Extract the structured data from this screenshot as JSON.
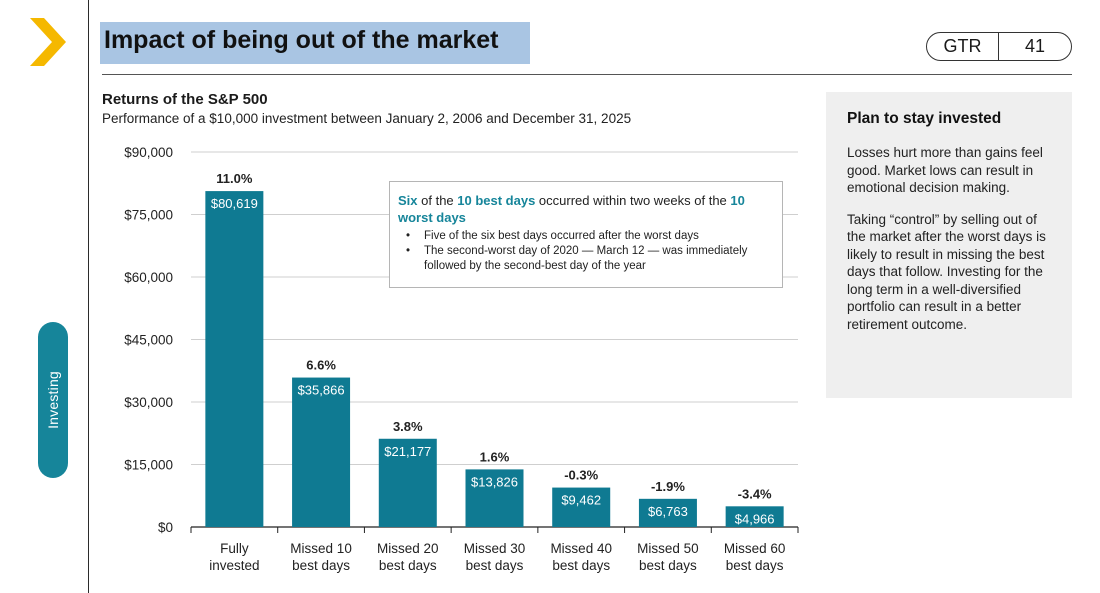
{
  "header": {
    "title": "Impact of being out of the market",
    "badge_left": "GTR",
    "badge_right": "41"
  },
  "side_tab": {
    "label": "Investing"
  },
  "chart_data": {
    "type": "bar",
    "title": "Returns of the S&P 500",
    "subtitle": "Performance of a $10,000 investment between January 2, 2006 and December 31, 2025",
    "categories": [
      [
        "Fully",
        "invested"
      ],
      [
        "Missed 10",
        "best days"
      ],
      [
        "Missed 20",
        "best days"
      ],
      [
        "Missed 30",
        "best days"
      ],
      [
        "Missed 40",
        "best days"
      ],
      [
        "Missed 50",
        "best days"
      ],
      [
        "Missed 60",
        "best days"
      ]
    ],
    "values": [
      80619,
      35866,
      21177,
      13826,
      9462,
      6763,
      4966
    ],
    "value_labels": [
      "$80,619",
      "$35,866",
      "$21,177",
      "$13,826",
      "$9,462",
      "$6,763",
      "$4,966"
    ],
    "return_labels": [
      "11.0%",
      "6.6%",
      "3.8%",
      "1.6%",
      "-0.3%",
      "-1.9%",
      "-3.4%"
    ],
    "yticks": [
      0,
      15000,
      30000,
      45000,
      60000,
      75000,
      90000
    ],
    "ytick_labels": [
      "$0",
      "$15,000",
      "$30,000",
      "$45,000",
      "$60,000",
      "$75,000",
      "$90,000"
    ],
    "ylim": [
      0,
      90000
    ],
    "grid": true,
    "bar_color": "#0f7a92"
  },
  "callout": {
    "head_parts": [
      "Six",
      " of the ",
      "10 best days",
      " occurred within two weeks of the ",
      "10 worst days"
    ],
    "bullets": [
      "Five of the six best days occurred after the worst days",
      "The second-worst day of 2020 — March 12 — was immediately followed by the second-best day of the year"
    ]
  },
  "sidebar": {
    "heading": "Plan to stay invested",
    "paragraphs": [
      "Losses hurt more than gains feel good. Market lows can result in emotional decision making.",
      "Taking “control” by selling out of the market after the worst days is likely to result in missing the best days that follow. Investing for the long term in a well-diversified portfolio can result in a better retirement outcome."
    ]
  },
  "colors": {
    "accent": "#16859a",
    "bar": "#0f7a92",
    "chevron": "#f5b800",
    "title_highlight": "#a9c5e3"
  },
  "icons": {
    "chevron": "chevron-right-icon"
  }
}
